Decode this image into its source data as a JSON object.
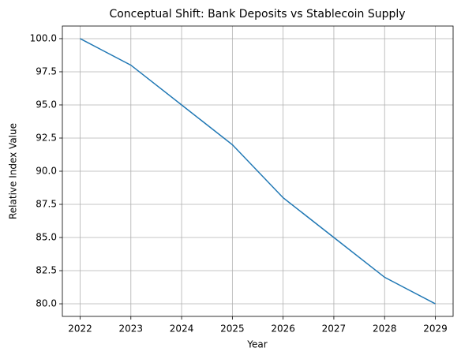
{
  "chart_data": {
    "type": "line",
    "title": "Conceptual Shift: Bank Deposits vs Stablecoin Supply",
    "x_label": "Year",
    "y_label": "Relative Index Value",
    "x": [
      2022,
      2023,
      2024,
      2025,
      2026,
      2027,
      2028,
      2029
    ],
    "series": [
      {
        "color": "#1f77b4",
        "values": [
          100,
          98,
          95,
          92,
          88,
          85,
          82,
          80
        ]
      }
    ],
    "xlim": [
      2021.65,
      2029.35
    ],
    "xticks": [
      2022,
      2023,
      2024,
      2025,
      2026,
      2027,
      2028,
      2029
    ],
    "ylim": [
      79.05,
      100.95
    ],
    "yticks": [
      {
        "value": 80,
        "label": "80.0"
      },
      {
        "value": 82.5,
        "label": "82.5"
      },
      {
        "value": 85,
        "label": "85.0"
      },
      {
        "value": 87.5,
        "label": "87.5"
      },
      {
        "value": 90,
        "label": "90.0"
      },
      {
        "value": 92.5,
        "label": "92.5"
      },
      {
        "value": 95,
        "label": "95.0"
      },
      {
        "value": 97.5,
        "label": "97.5"
      },
      {
        "value": 100,
        "label": "100.0"
      }
    ],
    "grid": true
  }
}
